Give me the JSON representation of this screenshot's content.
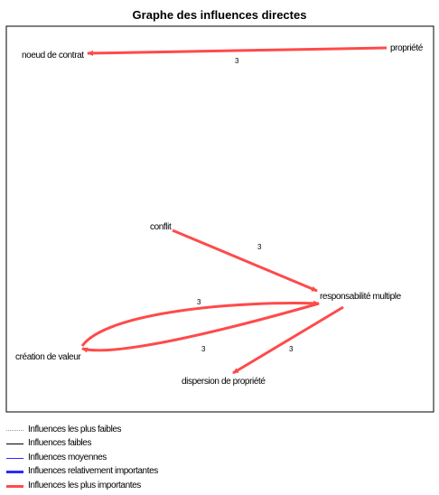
{
  "title": "Graphe des influences directes",
  "nodes": {
    "noeud_de_contrat": "noeud de contrat",
    "propriete": "propriété",
    "conflit": "conflit",
    "responsabilite_multiple": "responsabilité multiple",
    "creation_de_valeur": "création de valeur",
    "dispersion_de_propriete": "dispersion de propriété"
  },
  "edges": [
    {
      "from": "propriété",
      "to": "noeud de contrat",
      "weight": "3",
      "strength": "Influences les plus importantes"
    },
    {
      "from": "conflit",
      "to": "responsabilité multiple",
      "weight": "3",
      "strength": "Influences les plus importantes"
    },
    {
      "from": "création de valeur",
      "to": "responsabilité multiple",
      "weight": "3",
      "strength": "Influences les plus importantes"
    },
    {
      "from": "responsabilité multiple",
      "to": "création de valeur",
      "weight": "3",
      "strength": "Influences les plus importantes"
    },
    {
      "from": "responsabilité multiple",
      "to": "dispersion de propriété",
      "weight": "3",
      "strength": "Influences les plus importantes"
    }
  ],
  "legend": [
    {
      "label": "Influences les plus faibles",
      "color": "#9a9a9a",
      "style": "dotted"
    },
    {
      "label": "Influences faibles",
      "color": "#000000",
      "style": "solid"
    },
    {
      "label": "Influences moyennes",
      "color": "#2a2aff",
      "style": "solid"
    },
    {
      "label": "Influences relativement importantes",
      "color": "#2a2aff",
      "style": "thick"
    },
    {
      "label": "Influences les plus importantes",
      "color": "#ff4a4a",
      "style": "thick"
    }
  ],
  "colors": {
    "edge": "#ff4a4a",
    "frame": "#000000"
  }
}
